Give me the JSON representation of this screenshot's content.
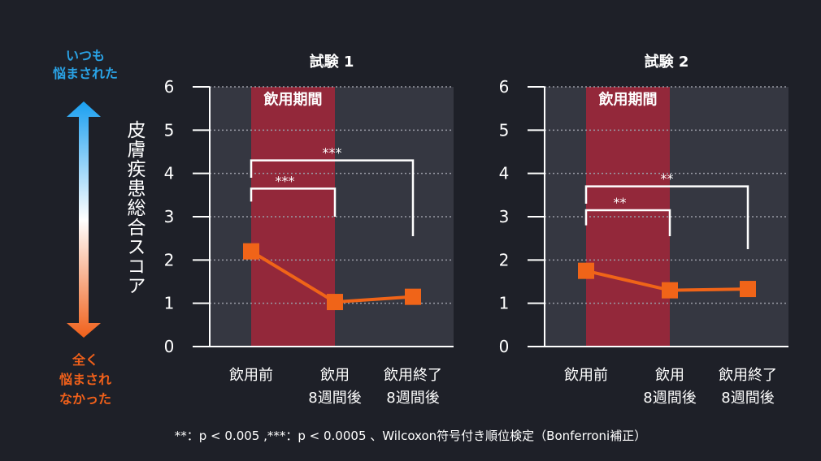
{
  "legend": {
    "top_label": [
      "いつも",
      "悩まされた"
    ],
    "bottom_label": [
      "全く",
      "悩まされ",
      "なかった"
    ],
    "top_color": "#1a9ff0",
    "bottom_color": "#f0601a"
  },
  "y_axis_label": "皮膚疾患総合スコア",
  "footnote": "**：p < 0.005 ,***：p < 0.0005 、Wilcoxon符号付き順位検定（Bonferroni補正）",
  "colors": {
    "background": "#1e2028",
    "plot_bg": "#353741",
    "band": "#93283a",
    "series": "#f06418",
    "bracket": "#ffffff"
  },
  "chart_data": [
    {
      "type": "line",
      "title": "試験 1",
      "categories": [
        [
          "飲用前"
        ],
        [
          "飲用",
          "8週間後"
        ],
        [
          "飲用終了",
          "8週間後"
        ]
      ],
      "values": [
        2.2,
        1.03,
        1.15
      ],
      "ylim": [
        0,
        6
      ],
      "yticks": [
        "0",
        "1",
        "2",
        "3",
        "4",
        "5",
        "6"
      ],
      "grid": "dotted horizontal",
      "shaded_region": {
        "label": "飲用期間",
        "from_category": 0,
        "to_category": 1
      },
      "significance": [
        {
          "from": 0,
          "to": 1,
          "label": "***"
        },
        {
          "from": 0,
          "to": 2,
          "label": "***"
        }
      ]
    },
    {
      "type": "line",
      "title": "試験 2",
      "categories": [
        [
          "飲用前"
        ],
        [
          "飲用",
          "8週間後"
        ],
        [
          "飲用終了",
          "8週間後"
        ]
      ],
      "values": [
        1.75,
        1.3,
        1.33
      ],
      "ylim": [
        0,
        6
      ],
      "yticks": [
        "0",
        "1",
        "2",
        "3",
        "4",
        "5",
        "6"
      ],
      "grid": "dotted horizontal",
      "shaded_region": {
        "label": "飲用期間",
        "from_category": 0,
        "to_category": 1
      },
      "significance": [
        {
          "from": 0,
          "to": 1,
          "label": "**"
        },
        {
          "from": 0,
          "to": 2,
          "label": "**"
        }
      ]
    }
  ]
}
